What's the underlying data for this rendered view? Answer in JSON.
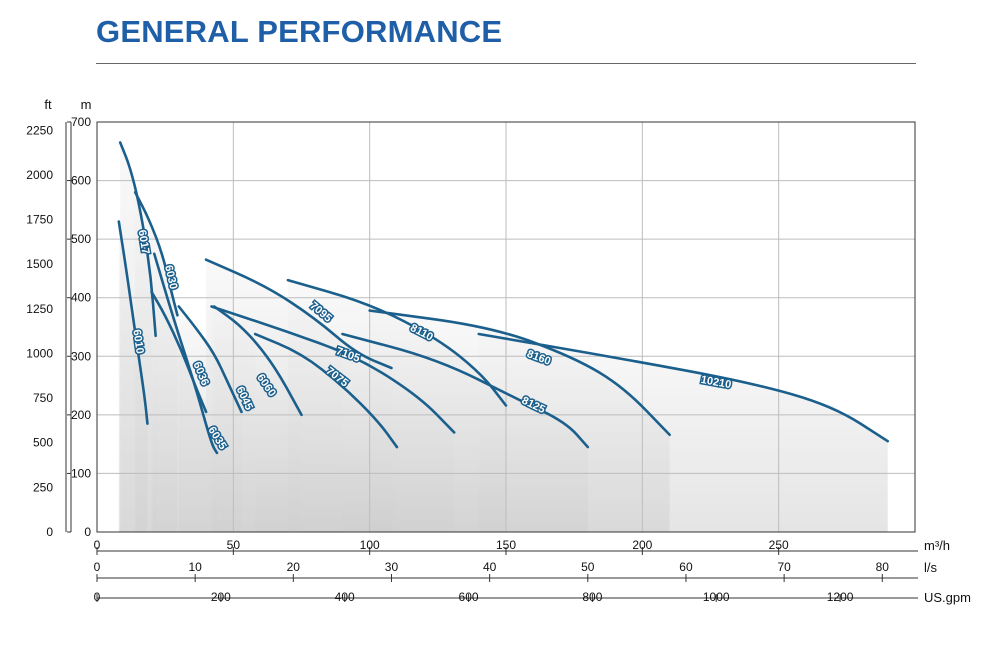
{
  "title": "GENERAL PERFORMANCE",
  "colors": {
    "title": "#1f5fa8",
    "curve": "#1b5f8c",
    "grid": "#bdbdbd"
  },
  "chart_data": {
    "type": "line",
    "title": "GENERAL PERFORMANCE",
    "grid": true,
    "legend": "none",
    "y_m": {
      "unit": "m",
      "ylim": [
        0,
        700
      ],
      "ticks": [
        0,
        100,
        200,
        300,
        400,
        500,
        600,
        700
      ]
    },
    "y_ft": {
      "unit": "ft",
      "ticks": [
        0,
        250,
        500,
        750,
        1000,
        1250,
        1500,
        1750,
        2000,
        2250
      ]
    },
    "x_m3h": {
      "unit": "m³/h",
      "xlim": [
        0,
        300
      ],
      "ticks": [
        0,
        50,
        100,
        150,
        200,
        250
      ]
    },
    "x_ls": {
      "unit": "l/s",
      "ticks": [
        0,
        10,
        20,
        30,
        40,
        50,
        60,
        70,
        80
      ]
    },
    "x_gpm": {
      "unit": "US.gpm",
      "ticks": [
        0,
        200,
        400,
        600,
        800,
        1000,
        1200
      ]
    },
    "series": [
      {
        "name": "6010",
        "x": [
          8,
          11,
          14,
          17.5,
          18.5
        ],
        "y": [
          530,
          440,
          340,
          230,
          185
        ],
        "label_at": [
          15,
          325
        ]
      },
      {
        "name": "6017",
        "x": [
          8.5,
          12,
          15.5,
          19.5,
          21.5
        ],
        "y": [
          665,
          625,
          560,
          450,
          335
        ],
        "label_at": [
          17,
          495
        ]
      },
      {
        "name": "6030",
        "x": [
          14,
          19,
          24,
          27,
          29.5
        ],
        "y": [
          580,
          535,
          475,
          415,
          370
        ],
        "label_at": [
          27,
          435
        ]
      },
      {
        "name": "6036",
        "x": [
          20,
          25,
          31,
          36,
          40
        ],
        "y": [
          410,
          370,
          310,
          250,
          205
        ],
        "label_at": [
          38,
          270
        ]
      },
      {
        "name": "6045",
        "x": [
          30,
          36,
          43,
          48,
          53
        ],
        "y": [
          385,
          350,
          305,
          255,
          205
        ],
        "label_at": [
          54,
          228
        ]
      },
      {
        "name": "6060",
        "x": [
          43,
          52,
          60,
          67,
          75
        ],
        "y": [
          385,
          355,
          315,
          268,
          200
        ],
        "label_at": [
          62,
          250
        ]
      },
      {
        "name": "6035",
        "x": [
          21,
          28,
          36,
          42,
          44
        ],
        "y": [
          475,
          365,
          250,
          150,
          135
        ],
        "label_at": [
          44,
          160
        ]
      },
      {
        "name": "7095",
        "x": [
          40,
          62,
          80,
          95,
          108
        ],
        "y": [
          465,
          420,
          365,
          305,
          280
        ],
        "label_at": [
          82,
          375
        ]
      },
      {
        "name": "7105",
        "x": [
          42,
          68,
          95,
          118,
          131
        ],
        "y": [
          385,
          345,
          300,
          232,
          170
        ],
        "label_at": [
          92,
          302
        ]
      },
      {
        "name": "7075",
        "x": [
          58,
          75,
          90,
          103,
          110
        ],
        "y": [
          338,
          305,
          250,
          190,
          145
        ],
        "label_at": [
          88,
          264
        ]
      },
      {
        "name": "8110",
        "x": [
          70,
          100,
          125,
          141,
          150
        ],
        "y": [
          430,
          390,
          330,
          270,
          216
        ],
        "label_at": [
          119,
          340
        ]
      },
      {
        "name": "8125",
        "x": [
          90,
          125,
          155,
          172,
          180
        ],
        "y": [
          338,
          295,
          225,
          187,
          145
        ],
        "label_at": [
          160,
          216
        ]
      },
      {
        "name": "8160",
        "x": [
          100,
          145,
          175,
          193,
          210
        ],
        "y": [
          378,
          350,
          298,
          248,
          166
        ],
        "label_at": [
          162,
          297
        ]
      },
      {
        "name": "10210",
        "x": [
          140,
          190,
          240,
          270,
          290
        ],
        "y": [
          338,
          298,
          255,
          215,
          155
        ],
        "label_at": [
          227,
          255
        ]
      }
    ]
  }
}
